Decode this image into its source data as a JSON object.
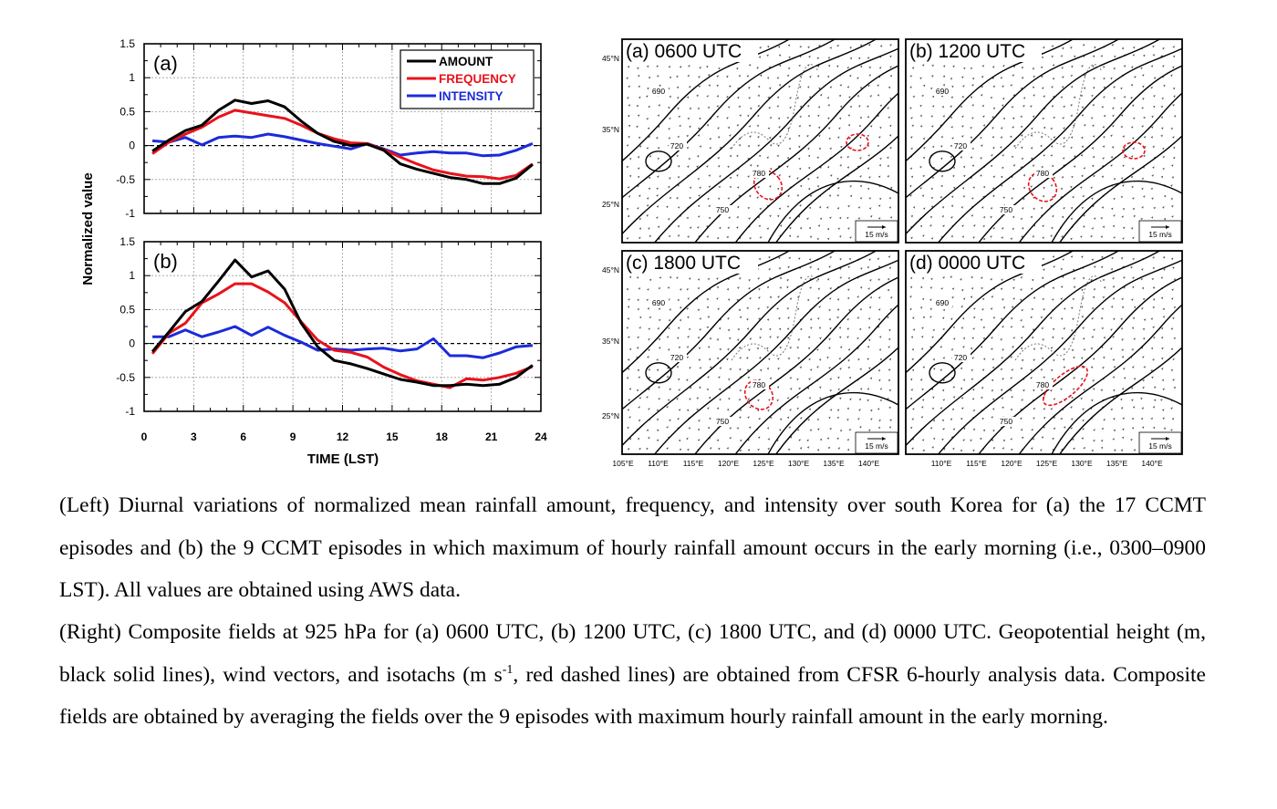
{
  "chart_data": [
    {
      "type": "line",
      "panel": "(a)",
      "x": [
        0.5,
        1.5,
        2.5,
        3.5,
        4.5,
        5.5,
        6.5,
        7.5,
        8.5,
        9.5,
        10.5,
        11.5,
        12.5,
        13.5,
        14.5,
        15.5,
        16.5,
        17.5,
        18.5,
        19.5,
        20.5,
        21.5,
        22.5,
        23.5
      ],
      "series": [
        {
          "name": "AMOUNT",
          "color": "#000000",
          "values": [
            -0.08,
            0.08,
            0.22,
            0.3,
            0.52,
            0.67,
            0.62,
            0.66,
            0.57,
            0.36,
            0.18,
            0.06,
            0.0,
            0.02,
            -0.07,
            -0.27,
            -0.35,
            -0.41,
            -0.47,
            -0.5,
            -0.56,
            -0.56,
            -0.48,
            -0.28
          ]
        },
        {
          "name": "FREQUENCY",
          "color": "#e8121b",
          "values": [
            -0.12,
            0.05,
            0.17,
            0.27,
            0.42,
            0.52,
            0.48,
            0.44,
            0.4,
            0.3,
            0.18,
            0.1,
            0.04,
            0.03,
            -0.06,
            -0.17,
            -0.27,
            -0.36,
            -0.41,
            -0.45,
            -0.46,
            -0.49,
            -0.44,
            -0.27
          ]
        },
        {
          "name": "INTENSITY",
          "color": "#1b2bd9",
          "values": [
            0.07,
            0.05,
            0.12,
            0.01,
            0.12,
            0.14,
            0.12,
            0.17,
            0.13,
            0.08,
            0.03,
            -0.01,
            -0.05,
            0.03,
            -0.05,
            -0.14,
            -0.11,
            -0.09,
            -0.11,
            -0.11,
            -0.15,
            -0.14,
            -0.07,
            0.03
          ]
        }
      ],
      "xlim": [
        0,
        24
      ],
      "ylim": [
        -1,
        1.5
      ],
      "xticks": [
        "0",
        "3",
        "6",
        "9",
        "12",
        "15",
        "18",
        "21",
        "24"
      ],
      "yticks": [
        "-1",
        "-0.5",
        "0",
        "0.5",
        "1",
        "1.5"
      ],
      "legend_position": "top-right",
      "grid": true
    },
    {
      "type": "line",
      "panel": "(b)",
      "x": [
        0.5,
        1.5,
        2.5,
        3.5,
        4.5,
        5.5,
        6.5,
        7.5,
        8.5,
        9.5,
        10.5,
        11.5,
        12.5,
        13.5,
        14.5,
        15.5,
        16.5,
        17.5,
        18.5,
        19.5,
        20.5,
        21.5,
        22.5,
        23.5
      ],
      "series": [
        {
          "name": "AMOUNT",
          "color": "#000000",
          "values": [
            -0.12,
            0.17,
            0.47,
            0.62,
            0.92,
            1.23,
            0.98,
            1.07,
            0.8,
            0.3,
            -0.05,
            -0.25,
            -0.3,
            -0.37,
            -0.45,
            -0.53,
            -0.57,
            -0.62,
            -0.62,
            -0.6,
            -0.62,
            -0.6,
            -0.5,
            -0.32
          ]
        },
        {
          "name": "FREQUENCY",
          "color": "#e8121b",
          "values": [
            -0.15,
            0.15,
            0.3,
            0.6,
            0.73,
            0.88,
            0.88,
            0.76,
            0.6,
            0.32,
            0.05,
            -0.1,
            -0.13,
            -0.2,
            -0.35,
            -0.46,
            -0.55,
            -0.6,
            -0.65,
            -0.52,
            -0.54,
            -0.5,
            -0.44,
            -0.34
          ]
        },
        {
          "name": "INTENSITY",
          "color": "#1b2bd9",
          "values": [
            0.1,
            0.1,
            0.2,
            0.1,
            0.17,
            0.25,
            0.12,
            0.24,
            0.12,
            0.02,
            -0.1,
            -0.08,
            -0.1,
            -0.08,
            -0.07,
            -0.11,
            -0.08,
            0.07,
            -0.18,
            -0.18,
            -0.21,
            -0.14,
            -0.05,
            -0.03
          ]
        }
      ],
      "xlim": [
        0,
        24
      ],
      "ylim": [
        -1,
        1.5
      ],
      "xticks": [
        "0",
        "3",
        "6",
        "9",
        "12",
        "15",
        "18",
        "21",
        "24"
      ],
      "yticks": [
        "-1",
        "-0.5",
        "0",
        "0.5",
        "1",
        "1.5"
      ],
      "grid": true
    }
  ],
  "left_chart": {
    "panel_a_label": "(a)",
    "panel_b_label": "(b)",
    "ylabel": "Normalized value",
    "xlabel": "TIME (LST)",
    "legend": [
      "AMOUNT",
      "FREQUENCY",
      "INTENSITY"
    ]
  },
  "maps": {
    "panels": [
      "(a) 0600 UTC",
      "(b) 1200 UTC",
      "(c) 1800 UTC",
      "(d) 0000 UTC"
    ],
    "lat_labels": [
      "45°N",
      "35°N",
      "25°N"
    ],
    "lon_labels_left": [
      "105°E",
      "110°E",
      "115°E",
      "120°E",
      "125°E",
      "130°E",
      "135°E",
      "140°E"
    ],
    "lon_labels_right": [
      "110°E",
      "115°E",
      "120°E",
      "125°E",
      "130°E",
      "135°E",
      "140°E"
    ],
    "reference_vector": "15 m/s",
    "contour_labels": [
      "690",
      "720",
      "750",
      "780"
    ]
  },
  "caption": {
    "left": "(Left) Diurnal variations of normalized mean rainfall amount, frequency, and intensity over south Korea for (a) the 17 CCMT episodes and (b) the 9 CCMT episodes in which maximum of hourly rainfall amount occurs in the early morning (i.e., 0300–0900 LST). All values are obtained using AWS data.",
    "right_1": "(Right) Composite fields at 925 hPa for (a) 0600 UTC, (b) 1200 UTC, (c) 1800 UTC, and (d) 0000 UTC. Geopotential height (m, black solid lines), wind vectors, and isotachs (m s",
    "right_sup": "-1",
    "right_2": ", red dashed lines) are obtained from CFSR 6-hourly analysis data. Composite fields are obtained by averaging the fields over the 9 episodes with maximum hourly rainfall amount in the early morning."
  }
}
